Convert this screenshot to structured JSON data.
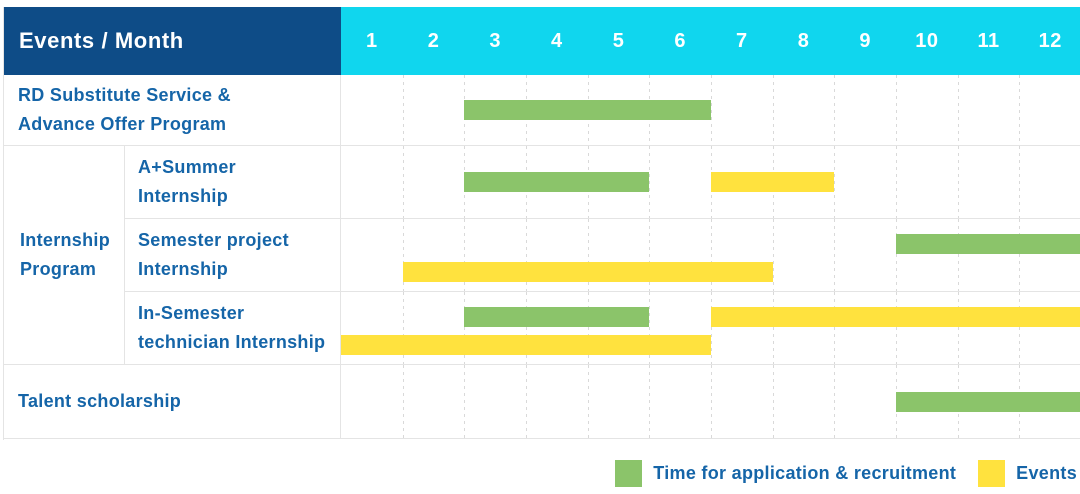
{
  "header": {
    "title": "Events / Month"
  },
  "colors": {
    "header_bg": "#0e4c87",
    "month_header_bg": "#10d6ee",
    "label_text": "#1565a8",
    "application": "#8bc46a",
    "events": "#ffe23e",
    "grid_line": "#e4e4e4"
  },
  "chart_data": {
    "type": "gantt",
    "unit": "month",
    "axis_range": [
      1,
      12
    ],
    "months": [
      "1",
      "2",
      "3",
      "4",
      "5",
      "6",
      "7",
      "8",
      "9",
      "10",
      "11",
      "12"
    ],
    "group_label": "Internship Program",
    "group_label_lines": [
      "Internship",
      "Program"
    ],
    "rows": [
      {
        "label": "RD Substitute Service & Advance Offer Program",
        "label_lines": [
          "RD Substitute Service &",
          "Advance Offer Program"
        ],
        "group": null,
        "lines": [
          [
            {
              "type": "application",
              "months": [
                3,
                4,
                5,
                6
              ]
            }
          ]
        ]
      },
      {
        "label": "A+Summer Internship",
        "label_lines": [
          "A+Summer",
          "Internship"
        ],
        "group": "Internship Program",
        "lines": [
          [
            {
              "type": "application",
              "months": [
                3,
                4,
                5
              ]
            },
            {
              "type": "events",
              "months": [
                7,
                8
              ]
            }
          ]
        ]
      },
      {
        "label": "Semester project Internship",
        "label_lines": [
          "Semester project",
          "Internship"
        ],
        "group": "Internship Program",
        "lines": [
          [
            {
              "type": "application",
              "months": [
                10,
                11,
                12
              ]
            }
          ],
          [
            {
              "type": "events",
              "months": [
                2,
                3,
                4,
                5,
                6,
                7
              ]
            }
          ]
        ]
      },
      {
        "label": "In-Semester technician Internship",
        "label_lines": [
          "In-Semester",
          "technician Internship"
        ],
        "group": "Internship Program",
        "lines": [
          [
            {
              "type": "application",
              "months": [
                3,
                4,
                5
              ]
            },
            {
              "type": "events",
              "months": [
                7,
                8,
                9,
                10,
                11,
                12
              ]
            }
          ],
          [
            {
              "type": "events",
              "months": [
                1,
                2,
                3,
                4,
                5,
                6
              ]
            }
          ]
        ]
      },
      {
        "label": "Talent scholarship",
        "label_lines": [
          "Talent scholarship"
        ],
        "group": null,
        "lines": [
          [
            {
              "type": "application",
              "months": [
                10,
                11,
                12
              ]
            }
          ]
        ]
      }
    ],
    "legend": [
      {
        "key": "application",
        "label": "Time for application & recruitment",
        "color": "#8bc46a"
      },
      {
        "key": "events",
        "label": "Events",
        "color": "#ffe23e"
      }
    ]
  }
}
